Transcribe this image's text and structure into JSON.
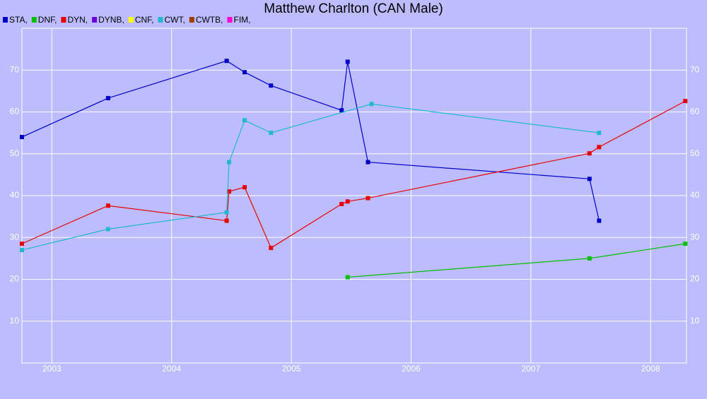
{
  "chart_data": {
    "type": "line",
    "title": "Matthew Charlton (CAN Male)",
    "xlim": [
      2002.75,
      2008.3
    ],
    "xticks": [
      2003,
      2004,
      2005,
      2006,
      2007,
      2008
    ],
    "ylim": [
      0,
      80
    ],
    "yticks": [
      10,
      20,
      30,
      40,
      50,
      60,
      70
    ],
    "grid": true,
    "series": [
      {
        "name": "STA,",
        "color": "#0000c8",
        "x": [
          2002.75,
          2003.47,
          2004.46,
          2004.61,
          2004.83,
          2005.42,
          2005.47,
          2005.64,
          2007.49,
          2007.57
        ],
        "values": [
          54,
          63.3,
          72.2,
          69.5,
          66.3,
          60.4,
          72,
          48,
          44,
          34
        ]
      },
      {
        "name": "DNF,",
        "color": "#00c000",
        "x": [
          2005.47,
          2007.49,
          2008.29
        ],
        "values": [
          20.5,
          25,
          28.5
        ]
      },
      {
        "name": "DYN,",
        "color": "#e80000",
        "x": [
          2002.75,
          2003.47,
          2004.46,
          2004.48,
          2004.61,
          2004.83,
          2005.42,
          2005.47,
          2005.64,
          2007.49,
          2007.57,
          2008.29
        ],
        "values": [
          28.5,
          37.6,
          34,
          41,
          42,
          27.5,
          38,
          38.6,
          39.4,
          50.1,
          51.6,
          62.6
        ]
      },
      {
        "name": "DYNB,",
        "color": "#6a00d8",
        "x": [],
        "values": []
      },
      {
        "name": "CNF,",
        "color": "#ffff00",
        "x": [],
        "values": []
      },
      {
        "name": "CWT,",
        "color": "#22b8d0",
        "x": [
          2002.75,
          2003.47,
          2004.46,
          2004.48,
          2004.61,
          2004.83,
          2005.67,
          2007.57
        ],
        "values": [
          27,
          32,
          36,
          48,
          58,
          55,
          61.9,
          55
        ]
      },
      {
        "name": "CWTB,",
        "color": "#a03c00",
        "x": [],
        "values": []
      },
      {
        "name": "FIM,",
        "color": "#ff00d0",
        "x": [],
        "values": []
      }
    ]
  }
}
